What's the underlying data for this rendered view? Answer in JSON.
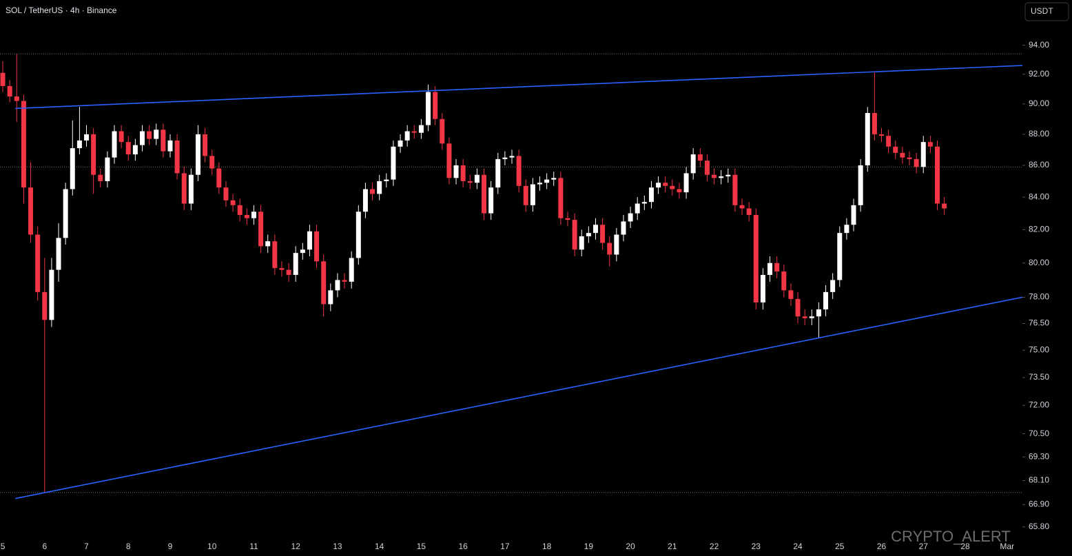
{
  "chart_data": {
    "type": "candlestick",
    "title": "SOL / TetherUS · 4h · Binance",
    "currency_button": "USDT",
    "watermark": "CRYPTO_ALERT",
    "log_scale": true,
    "up_color": "#ffffff",
    "down_color": "#f23645",
    "line_color": "#2962ff",
    "ylim": [
      64.4,
      97.2
    ],
    "xlim": [
      -0.4,
      146.2
    ],
    "yticks": [
      {
        "value": 94,
        "label": "94.00"
      },
      {
        "value": 92,
        "label": "92.00"
      },
      {
        "value": 90,
        "label": "90.00"
      },
      {
        "value": 88,
        "label": "88.00"
      },
      {
        "value": 86,
        "label": "86.00"
      },
      {
        "value": 84,
        "label": "84.00"
      },
      {
        "value": 82,
        "label": "82.00"
      },
      {
        "value": 80,
        "label": "80.00"
      },
      {
        "value": 78,
        "label": "78.00"
      },
      {
        "value": 76.5,
        "label": "76.50"
      },
      {
        "value": 75,
        "label": "75.00"
      },
      {
        "value": 73.5,
        "label": "73.50"
      },
      {
        "value": 72,
        "label": "72.00"
      },
      {
        "value": 70.5,
        "label": "70.50"
      },
      {
        "value": 69.3,
        "label": "69.30"
      },
      {
        "value": 68.1,
        "label": "68.10"
      },
      {
        "value": 66.9,
        "label": "66.90"
      },
      {
        "value": 65.8,
        "label": "65.80"
      }
    ],
    "categories": [
      "5",
      null,
      null,
      null,
      null,
      null,
      "6",
      null,
      null,
      null,
      null,
      null,
      "7",
      null,
      null,
      null,
      null,
      null,
      "8",
      null,
      null,
      null,
      null,
      null,
      "9",
      null,
      null,
      null,
      null,
      null,
      "10",
      null,
      null,
      null,
      null,
      null,
      "11",
      null,
      null,
      null,
      null,
      null,
      "12",
      null,
      null,
      null,
      null,
      null,
      "13",
      null,
      null,
      null,
      null,
      null,
      "14",
      null,
      null,
      null,
      null,
      null,
      "15",
      null,
      null,
      null,
      null,
      null,
      "16",
      null,
      null,
      null,
      null,
      null,
      "17",
      null,
      null,
      null,
      null,
      null,
      "18",
      null,
      null,
      null,
      null,
      null,
      "19",
      null,
      null,
      null,
      null,
      null,
      "20",
      null,
      null,
      null,
      null,
      null,
      "21",
      null,
      null,
      null,
      null,
      null,
      "22",
      null,
      null,
      null,
      null,
      null,
      "23",
      null,
      null,
      null,
      null,
      null,
      "24",
      null,
      null,
      null,
      null,
      null,
      "25",
      null,
      null,
      null,
      null,
      null,
      "26",
      null,
      null,
      null,
      null,
      null,
      "27",
      null,
      null,
      null,
      null,
      null,
      "28",
      null,
      null,
      null,
      null,
      null,
      "Mar"
    ],
    "open": [
      92.1,
      91.2,
      90.5,
      90.2,
      84.6,
      81.7,
      78.3,
      76.7,
      79.6,
      81.5,
      84.5,
      87.1,
      87.6,
      88.0,
      85.4,
      85.0,
      86.5,
      88.2,
      87.5,
      86.7,
      87.3,
      88.2,
      87.7,
      88.3,
      86.9,
      87.6,
      85.5,
      83.6,
      85.4,
      88.0,
      86.6,
      85.8,
      84.6,
      83.8,
      83.5,
      82.9,
      82.7,
      83.1,
      81.0,
      81.3,
      79.7,
      79.6,
      79.3,
      80.6,
      80.8,
      81.9,
      80.1,
      77.6,
      78.4,
      79.0,
      78.9,
      80.3,
      83.1,
      84.5,
      84.2,
      85.0,
      85.1,
      87.2,
      87.6,
      88.2,
      88.1,
      88.6,
      90.8,
      89.0,
      87.4,
      85.2,
      86.0,
      85.0,
      84.9,
      85.4,
      83.0,
      84.6,
      86.4,
      86.5,
      86.6,
      84.7,
      83.5,
      84.8,
      84.9,
      85.1,
      85.2,
      82.7,
      82.6,
      80.8,
      81.6,
      81.8,
      82.3,
      81.2,
      80.5,
      81.7,
      82.5,
      83.0,
      83.6,
      83.7,
      84.6,
      84.9,
      84.7,
      84.5,
      84.3,
      85.5,
      86.7,
      86.3,
      85.4,
      85.2,
      85.3,
      85.4,
      83.5,
      83.3,
      82.9,
      77.7,
      79.3,
      80.0,
      79.5,
      78.4,
      77.9,
      76.9,
      76.8,
      76.9,
      77.3,
      78.3,
      79.0,
      81.8,
      82.3,
      83.5,
      86.0,
      89.4,
      88.0,
      87.9,
      87.2,
      86.8,
      86.5,
      86.4,
      85.9,
      87.5,
      87.2,
      83.6,
      null,
      null,
      null,
      null,
      null,
      null,
      null,
      null,
      null
    ],
    "high": [
      92.9,
      91.6,
      93.4,
      90.6,
      86.2,
      82.2,
      80.3,
      80.3,
      82.4,
      84.9,
      88.9,
      89.8,
      88.6,
      88.4,
      85.8,
      86.9,
      88.6,
      88.6,
      87.9,
      87.7,
      88.6,
      88.6,
      88.7,
      88.7,
      88.0,
      88.0,
      85.9,
      85.8,
      88.6,
      88.4,
      87.0,
      86.2,
      85.0,
      84.2,
      83.9,
      83.3,
      83.5,
      83.5,
      81.7,
      81.7,
      80.1,
      80.0,
      81.0,
      81.2,
      82.3,
      82.3,
      80.5,
      78.8,
      79.4,
      79.4,
      80.7,
      83.5,
      84.9,
      84.9,
      85.4,
      85.5,
      87.6,
      88.0,
      88.6,
      88.6,
      89.0,
      91.3,
      91.2,
      89.4,
      87.8,
      86.4,
      86.4,
      85.4,
      85.8,
      85.8,
      85.0,
      86.8,
      86.9,
      87.0,
      87.0,
      85.1,
      85.2,
      85.3,
      85.5,
      85.6,
      85.6,
      83.1,
      83.0,
      82.0,
      82.2,
      82.7,
      82.7,
      81.6,
      82.1,
      82.9,
      83.4,
      84.0,
      84.1,
      85.0,
      85.3,
      85.3,
      85.1,
      84.9,
      85.9,
      87.1,
      87.1,
      86.7,
      85.8,
      85.7,
      85.8,
      85.8,
      83.9,
      83.7,
      83.3,
      79.7,
      80.4,
      80.4,
      79.9,
      78.8,
      78.3,
      77.3,
      77.3,
      77.7,
      78.7,
      79.4,
      82.2,
      82.7,
      83.9,
      86.4,
      89.8,
      92.1,
      88.4,
      88.3,
      87.6,
      87.2,
      86.9,
      86.8,
      87.9,
      87.9,
      87.6,
      84.0,
      null,
      null,
      null,
      null,
      null,
      null,
      null,
      null,
      null
    ],
    "low": [
      90.8,
      90.1,
      88.8,
      83.6,
      81.2,
      77.8,
      67.5,
      76.3,
      78.9,
      81.1,
      84.1,
      86.7,
      87.2,
      84.2,
      84.6,
      84.6,
      86.1,
      87.1,
      86.3,
      86.3,
      86.9,
      87.3,
      87.3,
      86.5,
      86.5,
      85.1,
      83.2,
      83.2,
      85.0,
      86.2,
      85.4,
      84.2,
      83.4,
      83.1,
      82.5,
      82.3,
      82.3,
      80.6,
      80.6,
      79.3,
      79.2,
      78.9,
      78.9,
      80.2,
      80.4,
      79.7,
      76.9,
      77.2,
      78.0,
      78.5,
      78.5,
      79.9,
      82.7,
      83.8,
      83.8,
      84.6,
      84.7,
      86.8,
      87.2,
      87.7,
      87.7,
      88.2,
      88.6,
      87.0,
      84.8,
      84.8,
      84.6,
      84.5,
      84.5,
      82.6,
      82.6,
      84.2,
      86.0,
      86.1,
      84.3,
      83.1,
      83.1,
      84.4,
      84.5,
      84.7,
      82.3,
      82.2,
      80.4,
      80.4,
      81.2,
      81.4,
      80.8,
      79.8,
      80.1,
      81.3,
      82.1,
      82.6,
      83.2,
      83.3,
      84.2,
      84.3,
      84.1,
      83.9,
      83.9,
      85.1,
      85.9,
      85.0,
      84.8,
      84.8,
      84.9,
      83.1,
      82.9,
      82.5,
      77.3,
      77.3,
      78.9,
      79.1,
      78.0,
      77.5,
      76.5,
      76.4,
      76.4,
      75.7,
      76.9,
      77.9,
      78.6,
      81.4,
      81.9,
      83.1,
      85.6,
      87.6,
      87.5,
      86.8,
      86.4,
      86.1,
      86.0,
      85.5,
      85.5,
      86.8,
      83.2,
      82.9,
      null,
      null,
      null,
      null,
      null,
      null,
      null,
      null,
      null
    ],
    "close": [
      91.2,
      90.5,
      90.2,
      84.6,
      81.7,
      78.3,
      76.7,
      79.6,
      81.5,
      84.5,
      87.1,
      87.6,
      88.0,
      85.4,
      85.0,
      86.5,
      88.2,
      87.5,
      86.7,
      87.3,
      88.2,
      87.7,
      88.3,
      86.9,
      87.6,
      85.5,
      83.6,
      85.4,
      88.0,
      86.6,
      85.8,
      84.6,
      83.8,
      83.5,
      82.9,
      82.7,
      83.1,
      81.0,
      81.3,
      79.7,
      79.6,
      79.3,
      80.6,
      80.8,
      81.9,
      80.1,
      77.6,
      78.4,
      79.0,
      78.9,
      80.3,
      83.1,
      84.5,
      84.2,
      85.0,
      85.1,
      87.2,
      87.6,
      88.2,
      88.1,
      88.6,
      90.8,
      89.0,
      87.4,
      85.2,
      86.0,
      85.0,
      84.9,
      85.4,
      83.0,
      84.6,
      86.4,
      86.5,
      86.6,
      84.7,
      83.5,
      84.8,
      84.9,
      85.1,
      85.2,
      82.7,
      82.6,
      80.8,
      81.6,
      81.8,
      82.3,
      81.2,
      80.5,
      81.7,
      82.5,
      83.0,
      83.6,
      83.7,
      84.6,
      84.9,
      84.7,
      84.5,
      84.3,
      85.5,
      86.7,
      86.3,
      85.4,
      85.2,
      85.3,
      85.4,
      83.5,
      83.3,
      82.9,
      77.7,
      79.3,
      80.0,
      79.5,
      78.4,
      77.9,
      76.9,
      76.8,
      76.9,
      77.3,
      78.3,
      79.0,
      81.8,
      82.3,
      83.5,
      86.0,
      89.4,
      88.0,
      87.9,
      87.2,
      86.8,
      86.5,
      86.4,
      85.9,
      87.5,
      87.2,
      83.6,
      83.3,
      null,
      null,
      null,
      null,
      null,
      null,
      null,
      null,
      null
    ],
    "trendlines": [
      {
        "from": [
          1.8,
          89.7
        ],
        "to": [
          146.2,
          92.6
        ]
      },
      {
        "from": [
          1.8,
          67.2
        ],
        "to": [
          146.2,
          78.0
        ]
      }
    ],
    "price_lines": [
      93.4,
      85.9,
      67.5
    ]
  }
}
